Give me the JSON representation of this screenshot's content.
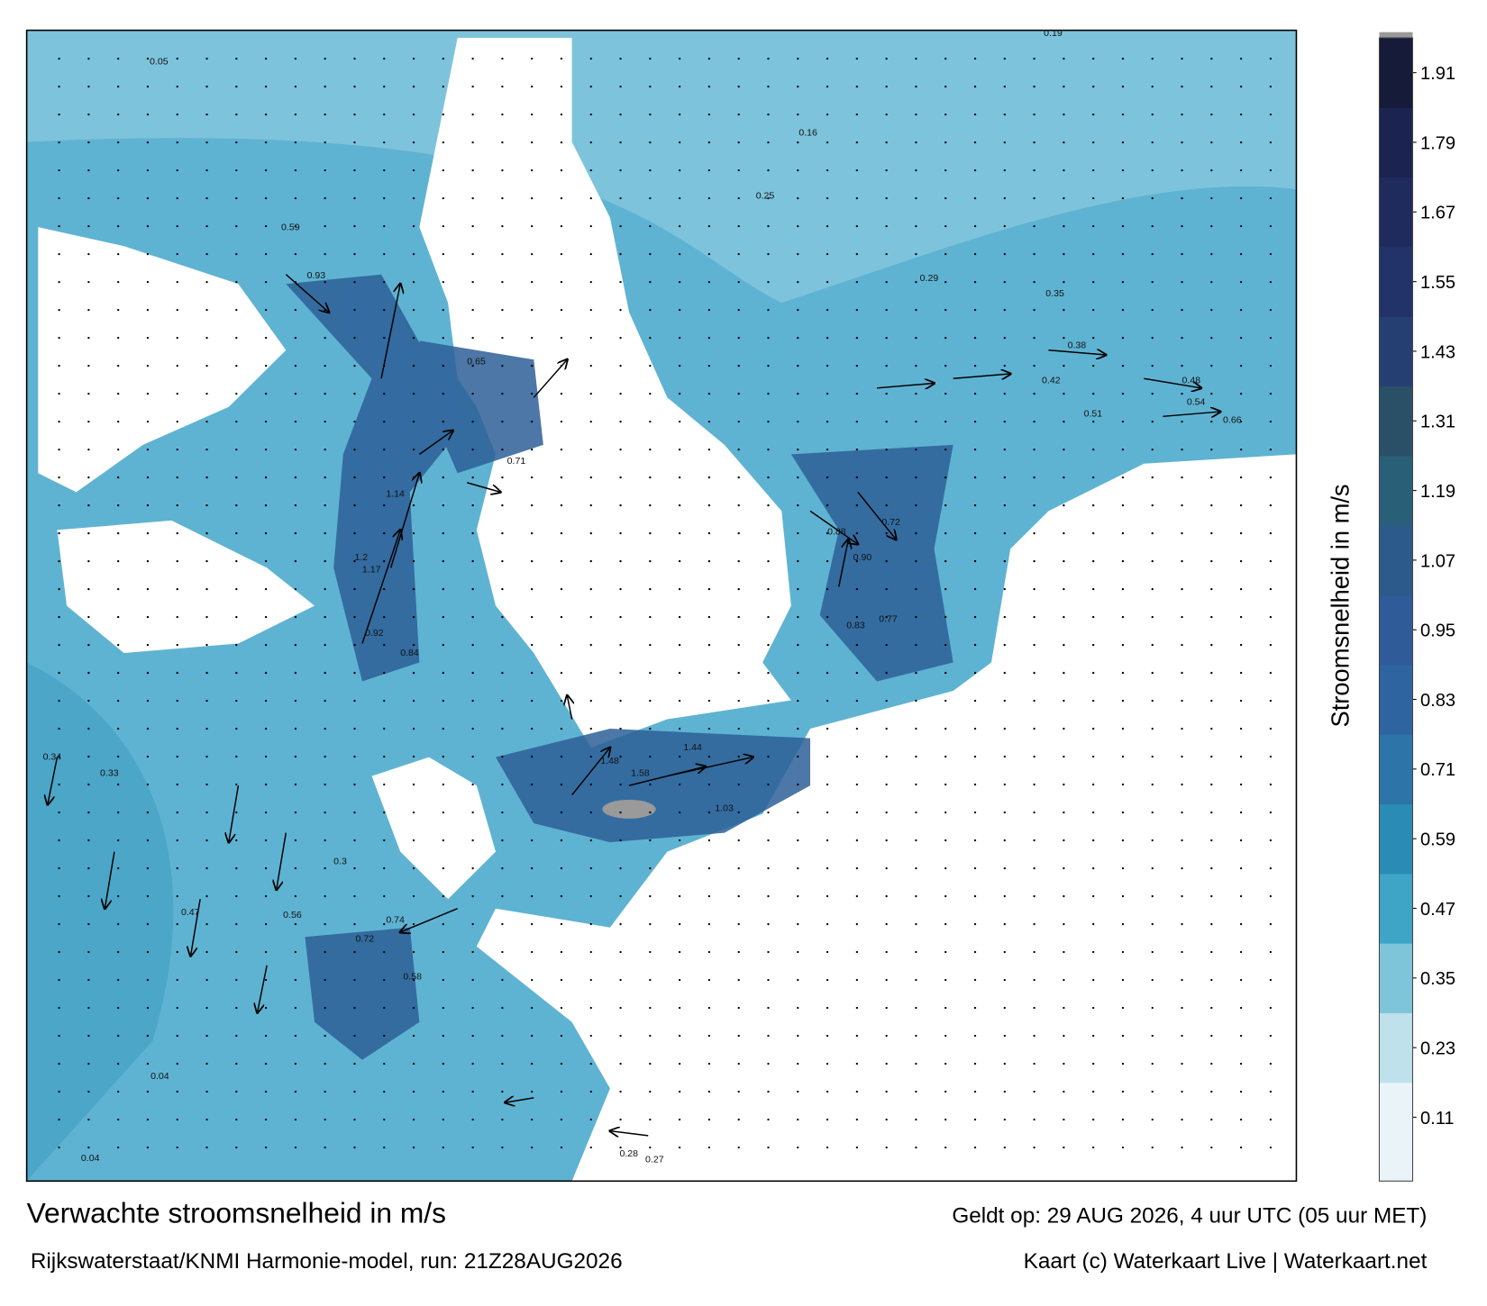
{
  "header": {
    "title": "Verwachte stroomsnelheid in m/s",
    "valid_time": "Geldt op: 29 AUG 2026, 4 uur UTC (05 uur MET)"
  },
  "footer": {
    "model": "Rijkswaterstaat/KNMI Harmonie-model, run: 21Z28AUG2026",
    "credit": "Kaart (c) Waterkaart Live | Waterkaart.net"
  },
  "colorbar": {
    "label": "Stroomsnelheid in m/s",
    "lim": [
      0,
      1.97
    ],
    "ticks": [
      0.11,
      0.23,
      0.35,
      0.47,
      0.59,
      0.71,
      0.83,
      0.95,
      1.07,
      1.19,
      1.31,
      1.43,
      1.55,
      1.67,
      1.79,
      1.91
    ],
    "colors": [
      "#eaf4f8",
      "#bfe1ec",
      "#7fc5da",
      "#3fa5c6",
      "#2a8cb5",
      "#2d74a9",
      "#2e65a0",
      "#2f5b98",
      "#2c5a8a",
      "#2a5f78",
      "#2a5068",
      "#263f72",
      "#22336a",
      "#1f2b5c",
      "#1b2450",
      "#151b38"
    ]
  },
  "map": {
    "labels": [
      "0.93",
      "0.59",
      "1.14",
      "1.17",
      "1.2",
      "0.92",
      "0.84",
      "0.65",
      "0.71",
      "1.48",
      "1.58",
      "1.44",
      "1.03",
      "0.88",
      "0.90",
      "0.77",
      "0.83",
      "0.72",
      "0.51",
      "0.54",
      "0.66",
      "0.48",
      "0.42",
      "0.38",
      "0.29",
      "0.3",
      "0.56",
      "0.74",
      "0.72",
      "0.58",
      "0.04",
      "0.04",
      "0.28",
      "0.27",
      "0.19",
      "0.16",
      "0.25",
      "0.35",
      "0.05",
      "0.34",
      "0.33",
      "0.47"
    ]
  }
}
